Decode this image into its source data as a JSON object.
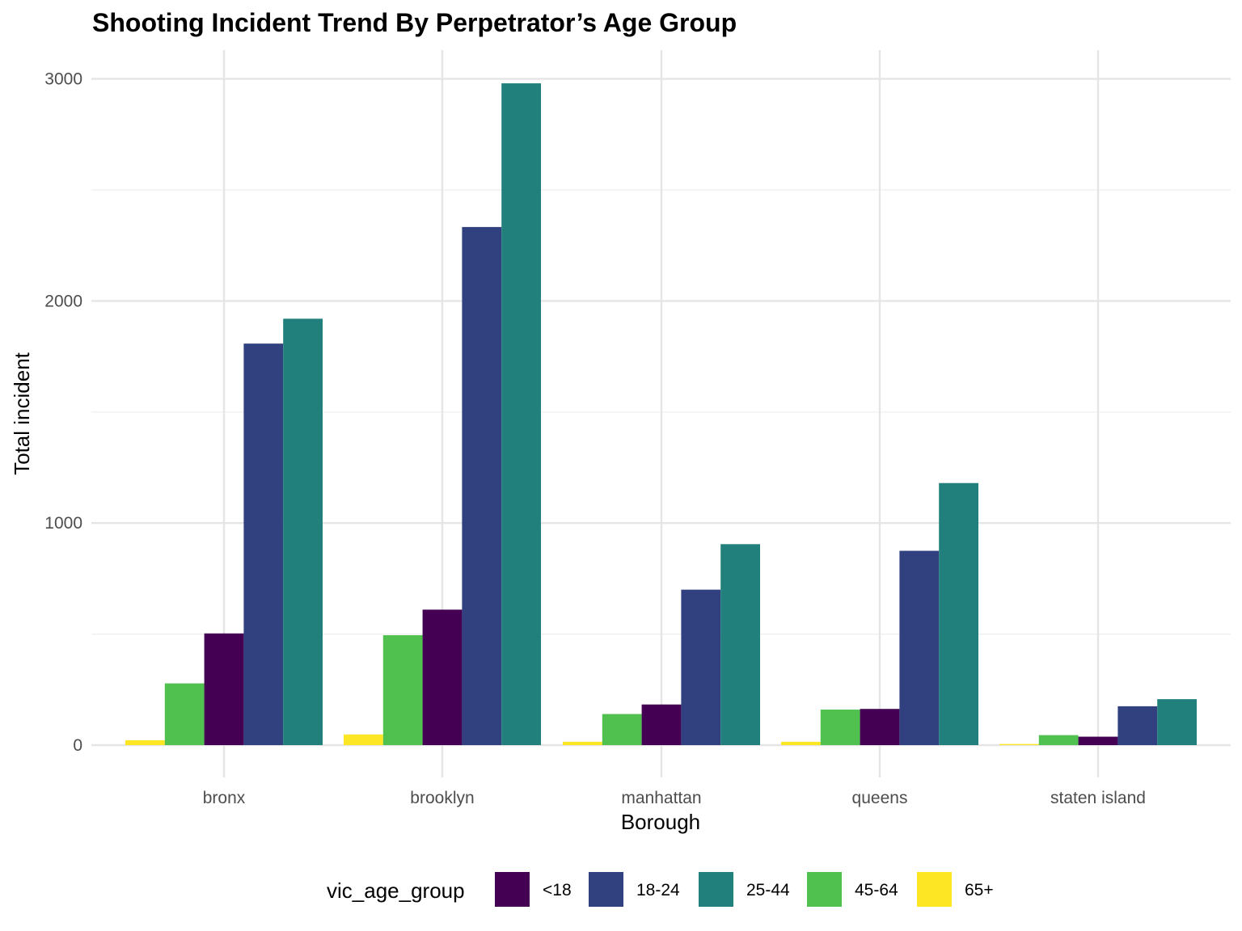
{
  "chart_data": {
    "type": "bar",
    "title": "Shooting Incident Trend By Perpetrator’s Age Group",
    "xlabel": "Borough",
    "ylabel": "Total incident",
    "categories": [
      "bronx",
      "brooklyn",
      "manhattan",
      "queens",
      "staten island"
    ],
    "ylim": [
      -135,
      3130
    ],
    "yticks": [
      0,
      1000,
      2000,
      3000
    ],
    "grid": true,
    "legend": {
      "title": "vic_age_group",
      "position": "bottom"
    },
    "bar_order": [
      "65+",
      "45-64",
      "<18",
      "18-24",
      "25-44"
    ],
    "series": [
      {
        "name": "<18",
        "color": "#440154",
        "values": [
          503,
          610,
          183,
          163,
          38
        ]
      },
      {
        "name": "18-24",
        "color": "#31407f",
        "values": [
          1808,
          2333,
          700,
          875,
          175
        ]
      },
      {
        "name": "25-44",
        "color": "#21807b",
        "values": [
          1920,
          2980,
          905,
          1180,
          207
        ]
      },
      {
        "name": "45-64",
        "color": "#50c04f",
        "values": [
          278,
          495,
          140,
          160,
          45
        ]
      },
      {
        "name": "65+",
        "color": "#fde725",
        "values": [
          22,
          48,
          15,
          15,
          5
        ]
      }
    ]
  }
}
